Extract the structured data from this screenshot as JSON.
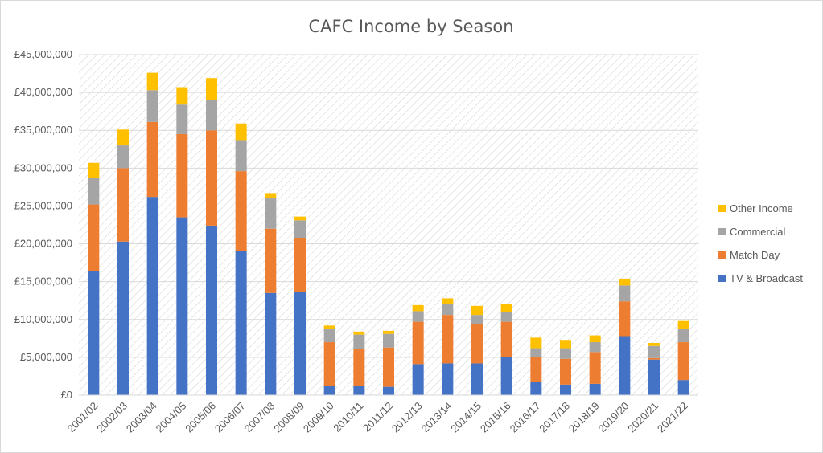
{
  "chart_data": {
    "type": "bar",
    "stacked": true,
    "title": "CAFC Income by Season",
    "xlabel": "",
    "ylabel": "",
    "ylim": [
      0,
      45000000
    ],
    "y_ticks": [
      "£0",
      "£5,000,000",
      "£10,000,000",
      "£15,000,000",
      "£20,000,000",
      "£25,000,000",
      "£30,000,000",
      "£35,000,000",
      "£40,000,000",
      "£45,000,000"
    ],
    "y_tick_values": [
      0,
      5000000,
      10000000,
      15000000,
      20000000,
      25000000,
      30000000,
      35000000,
      40000000,
      45000000
    ],
    "grid": true,
    "legend_position": "right",
    "categories": [
      "2001/02",
      "2002/03",
      "2003/04",
      "2004/05",
      "2005/06",
      "2006/07",
      "2007/08",
      "2008/09",
      "2009/10",
      "2010/11",
      "2011/12",
      "2012/13",
      "2013/14",
      "2014/15",
      "2015/16",
      "2016/17",
      "2017/18",
      "2018/19",
      "2019/20",
      "2020/21",
      "2021/22"
    ],
    "series": [
      {
        "name": "TV & Broadcast",
        "color": "#4472c4",
        "values": [
          16400000,
          20300000,
          26200000,
          23500000,
          22400000,
          19100000,
          13500000,
          13600000,
          1200000,
          1200000,
          1100000,
          4100000,
          4200000,
          4200000,
          5000000,
          1800000,
          1400000,
          1500000,
          7800000,
          4700000,
          2000000
        ]
      },
      {
        "name": "Match Day",
        "color": "#ed7d31",
        "values": [
          8800000,
          9700000,
          9900000,
          11000000,
          12600000,
          10500000,
          8500000,
          7200000,
          5800000,
          4900000,
          5200000,
          5600000,
          6400000,
          5200000,
          4700000,
          3200000,
          3400000,
          4200000,
          4600000,
          200000,
          5000000
        ]
      },
      {
        "name": "Commercial",
        "color": "#a5a5a5",
        "values": [
          3500000,
          3000000,
          4200000,
          3900000,
          4000000,
          4100000,
          4000000,
          2300000,
          1800000,
          1900000,
          1800000,
          1400000,
          1500000,
          1200000,
          1300000,
          1200000,
          1400000,
          1300000,
          2100000,
          1600000,
          1800000
        ]
      },
      {
        "name": "Other Income",
        "color": "#ffc000",
        "values": [
          2000000,
          2100000,
          2300000,
          2300000,
          2900000,
          2200000,
          700000,
          500000,
          400000,
          400000,
          400000,
          800000,
          700000,
          1200000,
          1100000,
          1400000,
          1100000,
          900000,
          900000,
          400000,
          1000000
        ]
      }
    ]
  }
}
